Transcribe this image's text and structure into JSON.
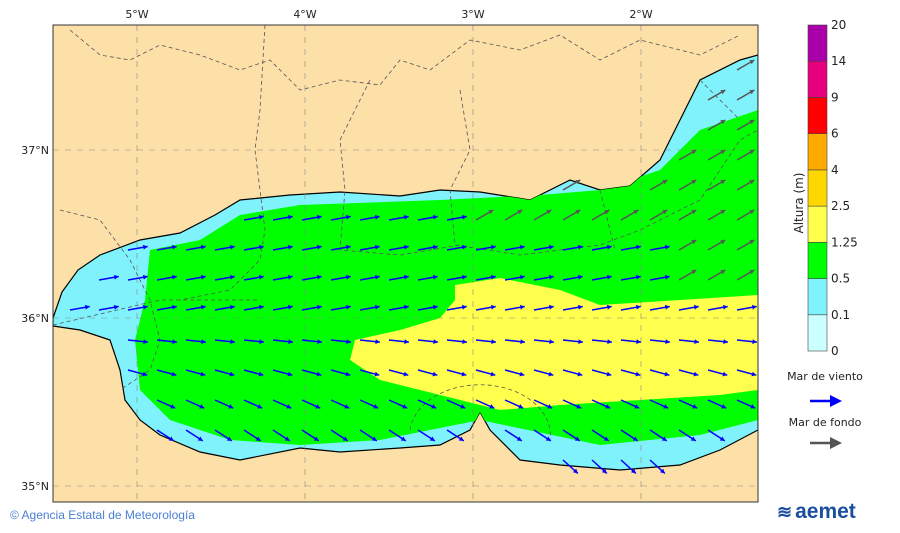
{
  "map": {
    "lon_ticks": [
      "5°W",
      "4°W",
      "3°W",
      "2°W"
    ],
    "lat_ticks": [
      "37°N",
      "36°N",
      "35°N"
    ],
    "colors": {
      "land": "#fde0a8",
      "border": "#555555",
      "grid": "#888888"
    }
  },
  "legend": {
    "title": "Altura (m)",
    "levels": [
      "0",
      "0.1",
      "0.5",
      "1.25",
      "2.5",
      "4",
      "6",
      "9",
      "14",
      "20"
    ],
    "colors": [
      "#ccffff",
      "#80f2fb",
      "#00ff00",
      "#ffff4d",
      "#ffd700",
      "#ffaa00",
      "#ff0000",
      "#e6007e",
      "#aa00aa"
    ],
    "wind_sea_label": "Mar de viento",
    "wind_sea_color": "#0000ff",
    "swell_label": "Mar de fondo",
    "swell_color": "#555555"
  },
  "footer": {
    "copyright": "© Agencia Estatal de Meteorología",
    "logo_text": "aemet"
  }
}
